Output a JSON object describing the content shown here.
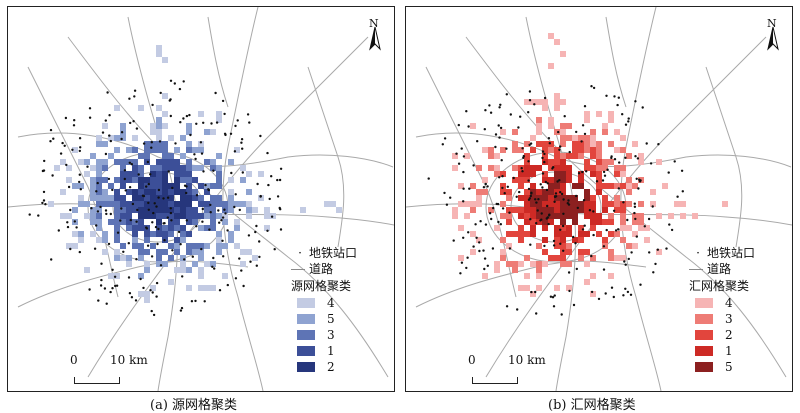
{
  "panels": [
    {
      "id": "a",
      "caption": "(a) 源网格聚类",
      "legend": {
        "station_label": "地铁站口",
        "road_label": "道路",
        "cluster_title": "源网格聚类",
        "classes": [
          {
            "label": "4",
            "color": "#c3cbe3"
          },
          {
            "label": "5",
            "color": "#8fa3d1"
          },
          {
            "label": "3",
            "color": "#5e74b5"
          },
          {
            "label": "1",
            "color": "#3c4f98"
          },
          {
            "label": "2",
            "color": "#26367c"
          }
        ]
      }
    },
    {
      "id": "b",
      "caption": "(b) 汇网格聚类",
      "legend": {
        "station_label": "地铁站口",
        "road_label": "道路",
        "cluster_title": "汇网格聚类",
        "classes": [
          {
            "label": "4",
            "color": "#f6b4b4"
          },
          {
            "label": "3",
            "color": "#ee7c76"
          },
          {
            "label": "2",
            "color": "#e2453d"
          },
          {
            "label": "1",
            "color": "#cd2a25"
          },
          {
            "label": "5",
            "color": "#8c2020"
          }
        ]
      }
    }
  ],
  "north_label": "N",
  "scale": {
    "zero": "0",
    "distance": "10 km"
  },
  "colors": {
    "road": "#a9a9a9",
    "station": "#111111"
  }
}
